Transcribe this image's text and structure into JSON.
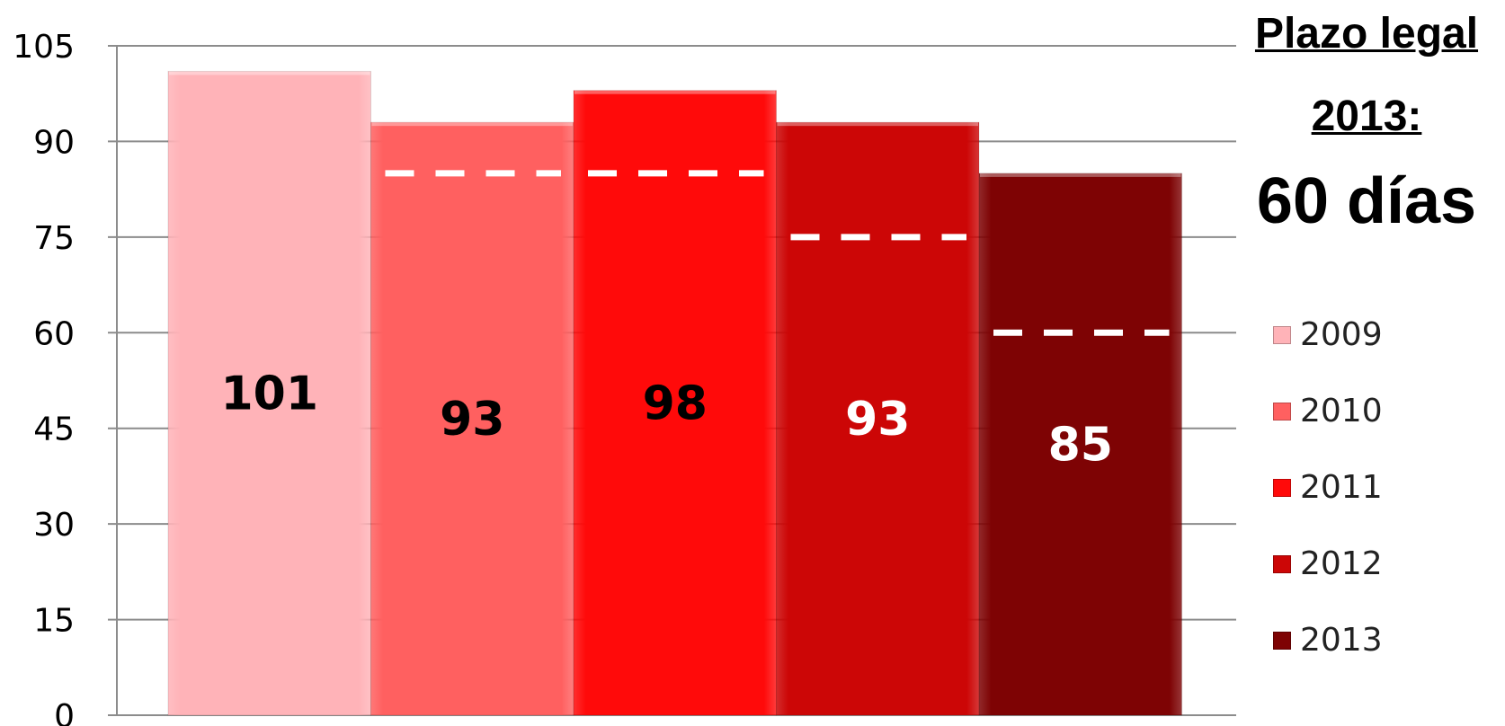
{
  "chart_data": {
    "type": "bar",
    "categories": [
      "2009",
      "2010",
      "2011",
      "2012",
      "2013"
    ],
    "values": [
      101,
      93,
      98,
      93,
      85
    ],
    "data_labels": [
      "101",
      "93",
      "98",
      "93",
      "85"
    ],
    "legal_limit": [
      null,
      85,
      85,
      75,
      60
    ],
    "ylim": [
      0,
      105
    ],
    "yticks": [
      "0",
      "15",
      "30",
      "45",
      "60",
      "75",
      "90",
      "105"
    ],
    "ytick_values": [
      0,
      15,
      30,
      45,
      60,
      75,
      90,
      105
    ],
    "grid": true,
    "legend_position": "right",
    "colors": [
      "#ffb3b8",
      "#ff6060",
      "#ff0a0a",
      "#cc0606",
      "#7e0304"
    ],
    "label_colors": [
      "#000000",
      "#000000",
      "#000000",
      "#ffffff",
      "#ffffff"
    ],
    "limit_line_color": "#ffffff"
  },
  "annotation": {
    "line1": "Plazo legal",
    "line2": "2013:",
    "big": "60 días"
  }
}
